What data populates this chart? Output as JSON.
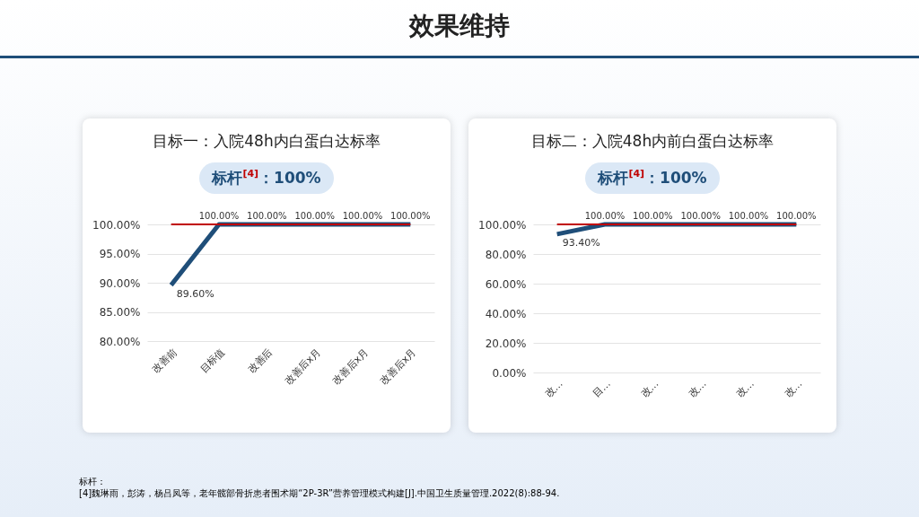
{
  "chart_data": [
    {
      "type": "other",
      "title": "效果维持"
    },
    {
      "type": "line",
      "title": "目标一：入院48h内白蛋白达标率",
      "subtitle": "标杆$^{[4]}$：100%",
      "categories": [
        "改善前",
        "目标值",
        "改善后",
        "改善后x月",
        "改善后x月",
        "改善后x月"
      ],
      "series": [
        {
          "color": "#1f4e79",
          "values": [
            89.6,
            100,
            100,
            100,
            100,
            100
          ],
          "value_labels": [
            "89.60%",
            "100.00%",
            "100.00%",
            "100.00%",
            "100.00%",
            "100.00%"
          ]
        },
        {
          "color": "#c00000",
          "values": [
            100,
            100,
            100,
            100,
            100,
            100
          ]
        }
      ],
      "ylim": [
        80,
        100
      ],
      "yticks": [
        {
          "value": 80,
          "label": "80.00%"
        },
        {
          "value": 85,
          "label": "85.00%"
        },
        {
          "value": 90,
          "label": "90.00%"
        },
        {
          "value": 95,
          "label": "95.00%"
        },
        {
          "value": 100,
          "label": "100.00%"
        }
      ],
      "grid": "y",
      "legend": false,
      "marker": "none",
      "line_style": "solid"
    },
    {
      "type": "line",
      "title": "目标二：入院48h内前白蛋白达标率",
      "subtitle": "标杆$^{[4]}$：100%",
      "categories": [
        "改…",
        "目…",
        "改…",
        "改…",
        "改…",
        "改…"
      ],
      "series": [
        {
          "color": "#1f4e79",
          "values": [
            93.4,
            100,
            100,
            100,
            100,
            100
          ],
          "value_labels": [
            "93.40%",
            "100.00%",
            "100.00%",
            "100.00%",
            "100.00%",
            "100.00%"
          ]
        },
        {
          "color": "#c00000",
          "values": [
            100,
            100,
            100,
            100,
            100,
            100
          ]
        }
      ],
      "ylim": [
        0,
        100
      ],
      "yticks": [
        {
          "value": 0,
          "label": "0.00%"
        },
        {
          "value": 20,
          "label": "20.00%"
        },
        {
          "value": 40,
          "label": "40.00%"
        },
        {
          "value": 60,
          "label": "60.00%"
        },
        {
          "value": 80,
          "label": "80.00%"
        },
        {
          "value": 100,
          "label": "100.00%"
        }
      ],
      "grid": "y",
      "legend": false,
      "marker": "none",
      "line_style": "solid"
    },
    {
      "type": "other",
      "annotations": [
        "标杆：",
        "[4]魏琳雨，彭涛，杨吕凤等，老年髋部骨折患者围术期“2P-3R”营养管理模式构建[J].中国卫生质量管理.2022(8):88-94."
      ]
    }
  ]
}
